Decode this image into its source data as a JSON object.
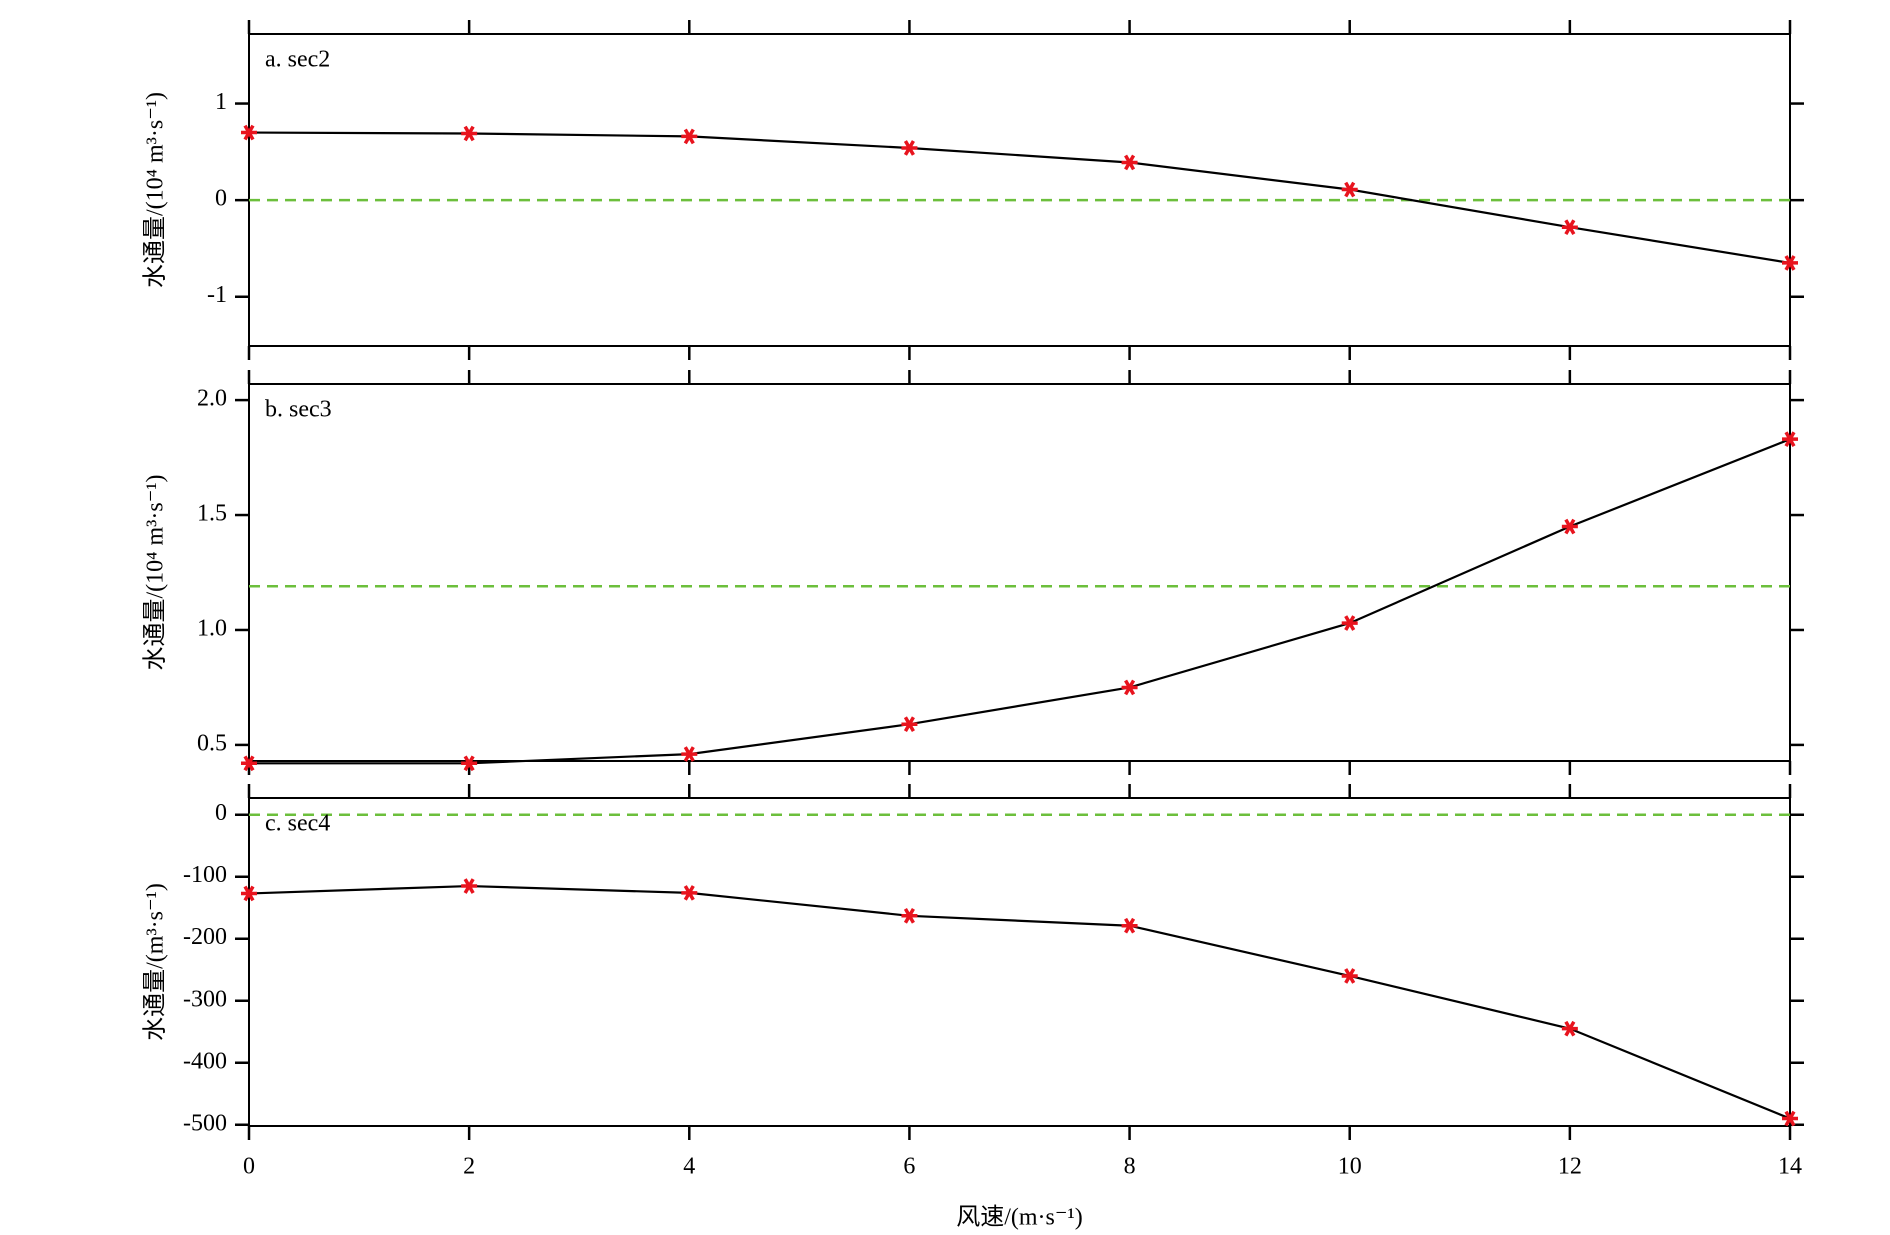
{
  "chart_data": [
    {
      "type": "line",
      "panel_label": "a. sec2",
      "ylabel": "水通量/(10⁴ m³·s⁻¹)",
      "x": [
        0,
        2,
        4,
        6,
        8,
        10,
        12,
        14
      ],
      "xlim": [
        0,
        14
      ],
      "xticks": [
        0,
        2,
        4,
        6,
        8,
        10,
        12,
        14
      ],
      "ylim": [
        -1.51,
        1.72
      ],
      "yticks": [
        -1,
        0,
        1
      ],
      "reference_line": 0,
      "reference_color": "#6cbf3c",
      "series": [
        {
          "color": "#000000",
          "marker_color": "#e8141e",
          "values": [
            0.7,
            0.69,
            0.66,
            0.54,
            0.39,
            0.11,
            -0.28,
            -0.65
          ]
        }
      ]
    },
    {
      "type": "line",
      "panel_label": "b. sec3",
      "ylabel": "水通量/(10⁴ m³·s⁻¹)",
      "x": [
        0,
        2,
        4,
        6,
        8,
        10,
        12,
        14
      ],
      "xlim": [
        0,
        14
      ],
      "xticks": [
        0,
        2,
        4,
        6,
        8,
        10,
        12,
        14
      ],
      "ylim": [
        0.43,
        2.07
      ],
      "yticks": [
        {
          "value": 0.5,
          "label": "0.5"
        },
        {
          "value": 1,
          "label": "1.0"
        },
        {
          "value": 1.5,
          "label": "1.5"
        },
        {
          "value": 2,
          "label": "2.0"
        }
      ],
      "reference_line": 1.19,
      "reference_color": "#6cbf3c",
      "series": [
        {
          "color": "#000000",
          "marker_color": "#e8141e",
          "values": [
            0.42,
            0.42,
            0.46,
            0.59,
            0.75,
            1.03,
            1.45,
            1.83
          ]
        }
      ]
    },
    {
      "type": "line",
      "panel_label": "c. sec4",
      "ylabel": "水通量/(m³·s⁻¹)",
      "xlabel": "风速/(m·s⁻¹)",
      "x": [
        0,
        2,
        4,
        6,
        8,
        10,
        12,
        14
      ],
      "xlim": [
        0,
        14
      ],
      "xticks": [
        0,
        2,
        4,
        6,
        8,
        10,
        12,
        14
      ],
      "ylim": [
        -502,
        27
      ],
      "yticks": [
        -500,
        -400,
        -300,
        -200,
        -100,
        0
      ],
      "reference_line": 0,
      "reference_color": "#6cbf3c",
      "series": [
        {
          "color": "#000000",
          "marker_color": "#e8141e",
          "values": [
            -127,
            -115,
            -126,
            -163,
            -179,
            -260,
            -345,
            -490
          ]
        }
      ]
    }
  ]
}
